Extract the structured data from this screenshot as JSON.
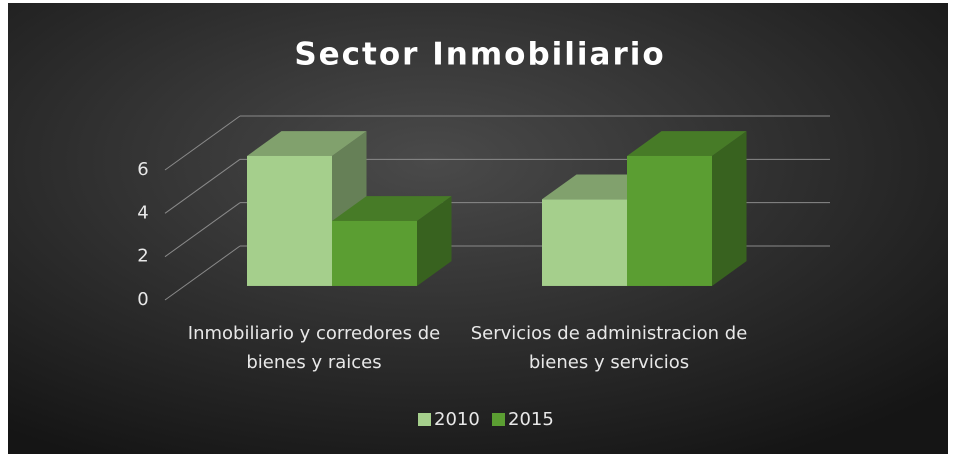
{
  "chart_data": {
    "type": "bar3d",
    "title": "Sector Inmobiliario",
    "categories": [
      "Inmobiliario y corredores de bienes y raices",
      "Servicios de administracion de bienes y servicios"
    ],
    "series": [
      {
        "name": "2010",
        "color": "#a5cf8c",
        "values": [
          6,
          4
        ]
      },
      {
        "name": "2015",
        "color": "#5b9e32",
        "values": [
          3,
          6
        ]
      }
    ],
    "ylim": [
      0,
      6
    ],
    "yticks": [
      0,
      2,
      4,
      6
    ],
    "grid": true,
    "legend": "bottom"
  }
}
